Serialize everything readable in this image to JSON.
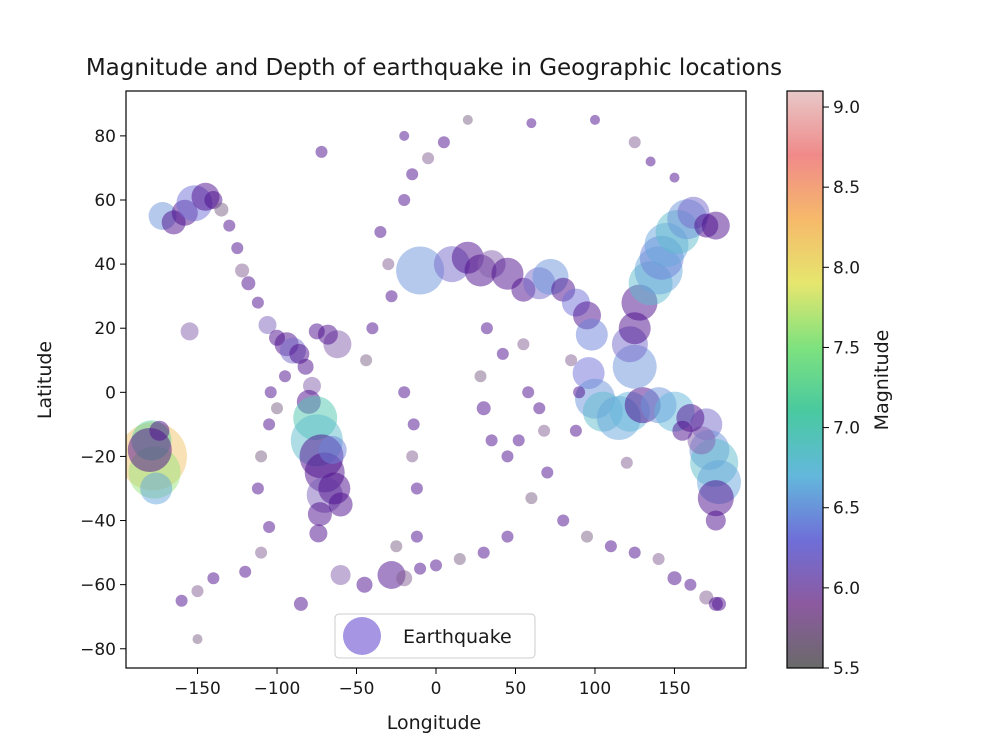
{
  "chart_data": {
    "type": "scatter",
    "title": "Magnitude and Depth of earthquake in Geographic locations",
    "xlabel": "Longitude",
    "ylabel": "Latitude",
    "xlim": [
      -195,
      195
    ],
    "ylim": [
      -86,
      94
    ],
    "xticks": [
      -150,
      -100,
      -50,
      0,
      50,
      100,
      150
    ],
    "yticks": [
      -80,
      -60,
      -40,
      -20,
      0,
      20,
      40,
      60,
      80
    ],
    "grid": false,
    "legend": {
      "position": "lower-center",
      "entries": [
        "Earthquake"
      ]
    },
    "colorbar": {
      "label": "Magnitude",
      "range": [
        5.5,
        9.1
      ],
      "ticks": [
        5.5,
        6.0,
        6.5,
        7.0,
        7.5,
        8.0,
        8.5,
        9.0
      ],
      "colormap": "nipy_spectral-like",
      "colors": [
        "#6a6a6a",
        "#8c5aa0",
        "#6f6fd8",
        "#63b8dc",
        "#49c9a0",
        "#7ee27e",
        "#e6e66e",
        "#f6b96a",
        "#f08a8a",
        "#e8c8c8"
      ]
    },
    "marker_color_default": "#4b0c8c",
    "marker_opacity": 0.5,
    "series": [
      {
        "name": "Earthquake",
        "points": [
          [
            -178,
            -20,
            8.2,
            34
          ],
          [
            -177,
            -25,
            7.6,
            26
          ],
          [
            -179,
            -15,
            7.2,
            20
          ],
          [
            -176,
            -30,
            6.6,
            16
          ],
          [
            -180,
            -18,
            6.0,
            22
          ],
          [
            -174,
            -12,
            5.9,
            10
          ],
          [
            -172,
            55,
            6.5,
            14
          ],
          [
            -165,
            53,
            6.0,
            12
          ],
          [
            -158,
            56,
            6.2,
            13
          ],
          [
            -152,
            59,
            6.3,
            18
          ],
          [
            -145,
            61,
            6.0,
            14
          ],
          [
            -140,
            60,
            5.8,
            9
          ],
          [
            -135,
            57,
            5.7,
            7
          ],
          [
            -130,
            52,
            5.8,
            6
          ],
          [
            -125,
            45,
            5.9,
            6
          ],
          [
            -122,
            38,
            5.8,
            7
          ],
          [
            -118,
            34,
            5.9,
            7
          ],
          [
            -112,
            28,
            5.8,
            6
          ],
          [
            -106,
            21,
            6.1,
            9
          ],
          [
            -100,
            17,
            6.0,
            8
          ],
          [
            -94,
            15,
            6.3,
            12
          ],
          [
            -90,
            13,
            6.2,
            13
          ],
          [
            -86,
            12,
            6.0,
            10
          ],
          [
            -82,
            8,
            5.9,
            8
          ],
          [
            -78,
            2,
            6.0,
            9
          ],
          [
            -80,
            -3,
            6.3,
            12
          ],
          [
            -76,
            -8,
            7.0,
            22
          ],
          [
            -75,
            -15,
            6.8,
            26
          ],
          [
            -72,
            -20,
            6.2,
            22
          ],
          [
            -70,
            -25,
            6.0,
            20
          ],
          [
            -70,
            -32,
            6.1,
            18
          ],
          [
            -73,
            -38,
            6.0,
            12
          ],
          [
            -74,
            -44,
            5.9,
            9
          ],
          [
            -65,
            -18,
            6.4,
            14
          ],
          [
            -64,
            -30,
            6.0,
            16
          ],
          [
            -60,
            -35,
            5.9,
            12
          ],
          [
            -62,
            15,
            6.0,
            14
          ],
          [
            -68,
            18,
            5.9,
            10
          ],
          [
            -75,
            19,
            5.8,
            8
          ],
          [
            -60,
            -57,
            6.0,
            10
          ],
          [
            -45,
            -60,
            5.9,
            8
          ],
          [
            -28,
            -57,
            6.0,
            14
          ],
          [
            -20,
            -58,
            5.8,
            8
          ],
          [
            -10,
            -55,
            5.7,
            6
          ],
          [
            0,
            -54,
            5.7,
            6
          ],
          [
            15,
            -52,
            5.7,
            6
          ],
          [
            30,
            -50,
            5.8,
            6
          ],
          [
            45,
            -45,
            5.8,
            6
          ],
          [
            60,
            -33,
            5.7,
            6
          ],
          [
            70,
            -25,
            5.8,
            6
          ],
          [
            80,
            -40,
            5.8,
            6
          ],
          [
            95,
            -45,
            5.7,
            6
          ],
          [
            110,
            -48,
            5.8,
            6
          ],
          [
            125,
            -50,
            5.8,
            6
          ],
          [
            140,
            -52,
            5.8,
            6
          ],
          [
            150,
            -58,
            5.9,
            7
          ],
          [
            160,
            -60,
            5.8,
            6
          ],
          [
            170,
            -64,
            5.8,
            7
          ],
          [
            178,
            -66,
            5.8,
            7
          ],
          [
            -160,
            -65,
            5.8,
            6
          ],
          [
            -150,
            -62,
            5.8,
            6
          ],
          [
            -140,
            -58,
            5.8,
            6
          ],
          [
            -120,
            -56,
            5.8,
            6
          ],
          [
            -110,
            -50,
            5.8,
            6
          ],
          [
            -105,
            -42,
            5.8,
            6
          ],
          [
            -112,
            -30,
            5.8,
            6
          ],
          [
            -110,
            -20,
            5.7,
            6
          ],
          [
            -105,
            -10,
            5.7,
            6
          ],
          [
            -104,
            0,
            5.8,
            6
          ],
          [
            -100,
            -5,
            5.7,
            6
          ],
          [
            -95,
            5,
            5.7,
            6
          ],
          [
            -35,
            50,
            5.8,
            6
          ],
          [
            -30,
            40,
            5.8,
            6
          ],
          [
            -28,
            30,
            5.7,
            6
          ],
          [
            -40,
            20,
            5.7,
            6
          ],
          [
            -44,
            10,
            5.7,
            6
          ],
          [
            -20,
            0,
            5.7,
            6
          ],
          [
            -14,
            -10,
            5.8,
            6
          ],
          [
            -15,
            -20,
            5.8,
            6
          ],
          [
            -12,
            -30,
            5.8,
            6
          ],
          [
            -12,
            -45,
            5.7,
            6
          ],
          [
            -25,
            -48,
            5.7,
            6
          ],
          [
            -20,
            60,
            5.8,
            6
          ],
          [
            -15,
            68,
            5.8,
            6
          ],
          [
            -5,
            73,
            5.8,
            6
          ],
          [
            5,
            78,
            5.8,
            6
          ],
          [
            -10,
            38,
            6.5,
            24
          ],
          [
            10,
            40,
            6.2,
            18
          ],
          [
            20,
            42,
            6.0,
            16
          ],
          [
            28,
            38,
            6.1,
            16
          ],
          [
            35,
            40,
            6.0,
            14
          ],
          [
            45,
            37,
            6.3,
            16
          ],
          [
            55,
            32,
            6.0,
            12
          ],
          [
            65,
            34,
            6.2,
            16
          ],
          [
            72,
            36,
            6.5,
            18
          ],
          [
            80,
            32,
            6.0,
            12
          ],
          [
            88,
            28,
            6.3,
            14
          ],
          [
            95,
            24,
            6.1,
            14
          ],
          [
            98,
            18,
            6.4,
            16
          ],
          [
            96,
            6,
            6.3,
            16
          ],
          [
            100,
            -2,
            6.5,
            20
          ],
          [
            105,
            -6,
            6.8,
            20
          ],
          [
            115,
            -8,
            6.6,
            22
          ],
          [
            122,
            -6,
            6.7,
            20
          ],
          [
            130,
            -4,
            6.3,
            18
          ],
          [
            140,
            -4,
            6.5,
            18
          ],
          [
            150,
            -6,
            6.7,
            20
          ],
          [
            125,
            8,
            6.5,
            22
          ],
          [
            122,
            15,
            6.2,
            18
          ],
          [
            125,
            20,
            6.0,
            16
          ],
          [
            128,
            28,
            6.3,
            18
          ],
          [
            135,
            34,
            6.8,
            22
          ],
          [
            140,
            38,
            6.6,
            24
          ],
          [
            142,
            42,
            6.4,
            22
          ],
          [
            145,
            46,
            6.6,
            22
          ],
          [
            152,
            50,
            6.8,
            22
          ],
          [
            158,
            54,
            6.5,
            20
          ],
          [
            162,
            56,
            6.2,
            16
          ],
          [
            170,
            52,
            5.9,
            12
          ],
          [
            176,
            52,
            6.0,
            14
          ],
          [
            170,
            -10,
            6.2,
            16
          ],
          [
            172,
            -18,
            6.5,
            20
          ],
          [
            175,
            -22,
            6.8,
            24
          ],
          [
            178,
            -28,
            6.6,
            22
          ],
          [
            176,
            -33,
            6.3,
            18
          ],
          [
            176,
            -40,
            6.0,
            10
          ],
          [
            167,
            -15,
            6.0,
            14
          ],
          [
            160,
            -8,
            6.1,
            14
          ],
          [
            155,
            -12,
            6.0,
            10
          ],
          [
            120,
            -22,
            5.8,
            6
          ],
          [
            30,
            -5,
            5.8,
            7
          ],
          [
            35,
            -15,
            5.8,
            6
          ],
          [
            28,
            5,
            5.7,
            6
          ],
          [
            32,
            20,
            5.7,
            6
          ],
          [
            42,
            12,
            5.8,
            6
          ],
          [
            55,
            15,
            5.8,
            6
          ],
          [
            58,
            0,
            5.8,
            6
          ],
          [
            65,
            -5,
            5.7,
            6
          ],
          [
            68,
            -12,
            5.8,
            6
          ],
          [
            52,
            -15,
            5.7,
            6
          ],
          [
            45,
            -20,
            5.8,
            6
          ],
          [
            85,
            10,
            5.8,
            6
          ],
          [
            90,
            0,
            5.8,
            6
          ],
          [
            88,
            -12,
            5.8,
            6
          ],
          [
            -155,
            19,
            6.0,
            9
          ],
          [
            -72,
            75,
            5.8,
            6
          ],
          [
            -20,
            80,
            5.7,
            5
          ],
          [
            20,
            85,
            5.7,
            5
          ],
          [
            60,
            84,
            5.7,
            5
          ],
          [
            100,
            85,
            5.7,
            5
          ],
          [
            125,
            78,
            5.8,
            6
          ],
          [
            135,
            72,
            5.7,
            5
          ],
          [
            150,
            67,
            5.7,
            5
          ],
          [
            -150,
            -77,
            5.7,
            5
          ],
          [
            -85,
            -66,
            5.9,
            7
          ],
          [
            176,
            -66,
            5.8,
            7
          ]
        ]
      }
    ]
  }
}
